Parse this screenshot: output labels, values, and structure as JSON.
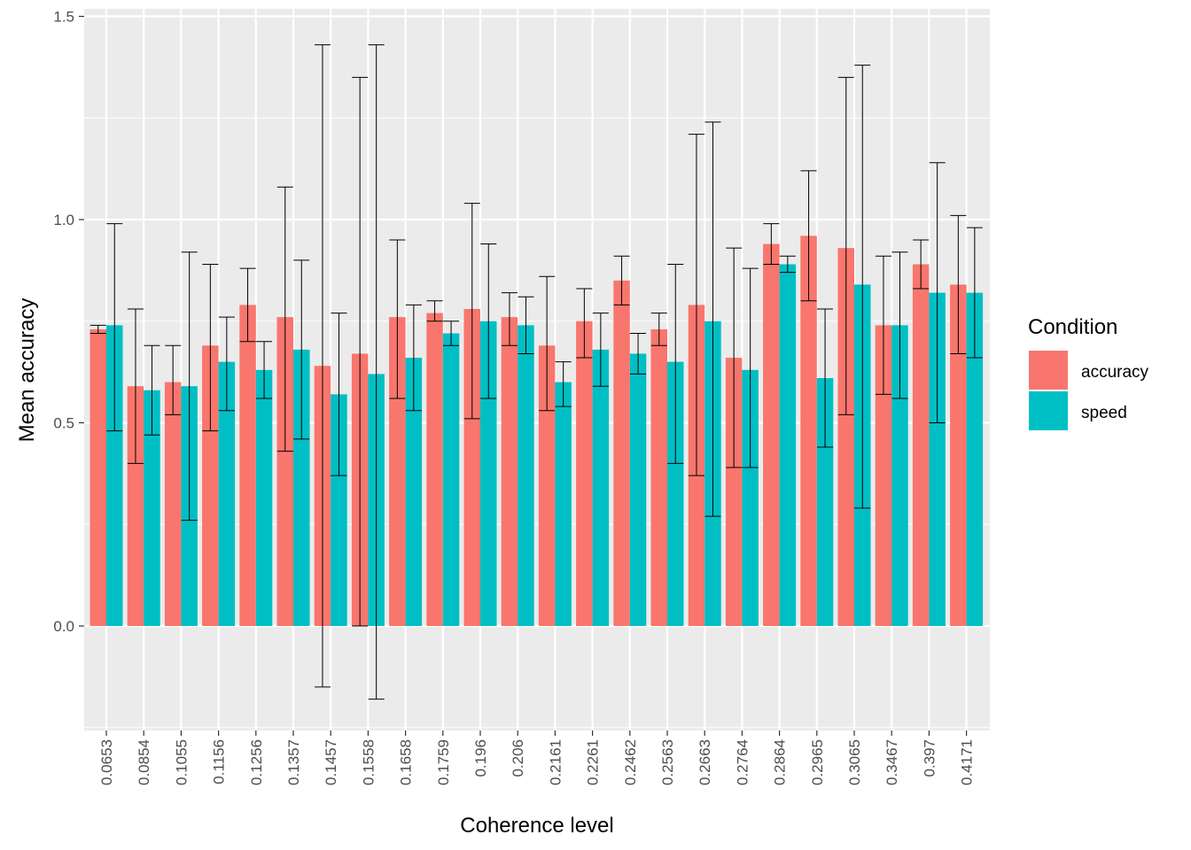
{
  "chart_data": {
    "type": "bar",
    "xlabel": "Coherence level",
    "ylabel": "Mean accuracy",
    "ylim": [
      -0.25,
      1.5
    ],
    "yticks": [
      "0.0",
      "0.5",
      "1.0",
      "1.5"
    ],
    "categories": [
      "0.0653",
      "0.0854",
      "0.1055",
      "0.1156",
      "0.1256",
      "0.1357",
      "0.1457",
      "0.1558",
      "0.1658",
      "0.1759",
      "0.196",
      "0.206",
      "0.2161",
      "0.2261",
      "0.2462",
      "0.2563",
      "0.2663",
      "0.2764",
      "0.2864",
      "0.2965",
      "0.3065",
      "0.3467",
      "0.397",
      "0.4171"
    ],
    "legend": {
      "title": "Condition",
      "position": "right"
    },
    "grid": true,
    "series": [
      {
        "name": "accuracy",
        "color": "#F8766D",
        "values": [
          0.73,
          0.59,
          0.6,
          0.69,
          0.79,
          0.76,
          0.64,
          0.67,
          0.76,
          0.77,
          0.78,
          0.76,
          0.69,
          0.75,
          0.85,
          0.73,
          0.79,
          0.66,
          0.94,
          0.96,
          0.93,
          0.74,
          0.89,
          0.84
        ],
        "err_low": [
          0.72,
          0.4,
          0.52,
          0.48,
          0.7,
          0.43,
          -0.15,
          0.0,
          0.56,
          0.75,
          0.51,
          0.69,
          0.53,
          0.66,
          0.79,
          0.69,
          0.37,
          0.39,
          0.89,
          0.8,
          0.52,
          0.57,
          0.83,
          0.67
        ],
        "err_high": [
          0.74,
          0.78,
          0.69,
          0.89,
          0.88,
          1.08,
          1.43,
          1.35,
          0.95,
          0.8,
          1.04,
          0.82,
          0.86,
          0.83,
          0.91,
          0.77,
          1.21,
          0.93,
          0.99,
          1.12,
          1.35,
          0.91,
          0.95,
          1.01
        ]
      },
      {
        "name": "speed",
        "color": "#00BFC4",
        "values": [
          0.74,
          0.58,
          0.59,
          0.65,
          0.63,
          0.68,
          0.57,
          0.62,
          0.66,
          0.72,
          0.75,
          0.74,
          0.6,
          0.68,
          0.67,
          0.65,
          0.75,
          0.63,
          0.89,
          0.61,
          0.84,
          0.74,
          0.82,
          0.82
        ],
        "err_low": [
          0.48,
          0.47,
          0.26,
          0.53,
          0.56,
          0.46,
          0.37,
          -0.18,
          0.53,
          0.69,
          0.56,
          0.67,
          0.54,
          0.59,
          0.62,
          0.4,
          0.27,
          0.39,
          0.87,
          0.44,
          0.29,
          0.56,
          0.5,
          0.66
        ],
        "err_high": [
          0.99,
          0.69,
          0.92,
          0.76,
          0.7,
          0.9,
          0.77,
          1.43,
          0.79,
          0.75,
          0.94,
          0.81,
          0.65,
          0.77,
          0.72,
          0.89,
          1.24,
          0.88,
          0.91,
          0.78,
          1.38,
          0.92,
          1.14,
          0.98
        ]
      }
    ]
  }
}
